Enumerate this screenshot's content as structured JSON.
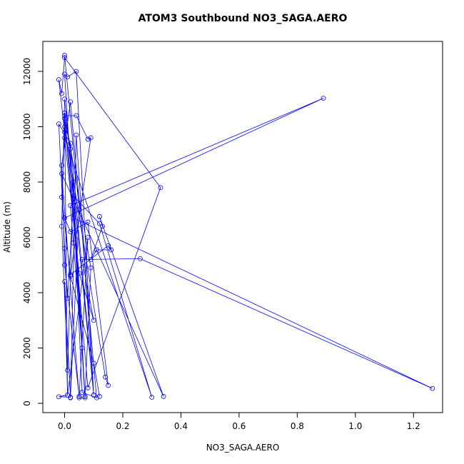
{
  "chart_data": {
    "type": "scatter-line",
    "title": "ATOM3 Southbound NO3_SAGA.AERO",
    "x_label": "NO3_SAGA.AERO",
    "y_label": "Altitude (m)",
    "color": "#0000ff",
    "x": [
      0.12,
      0.1,
      0.02,
      -0.01,
      0.0,
      -0.02,
      -0.01,
      0.0,
      0.33,
      0.08,
      0.0,
      0.02,
      0.06,
      0.03,
      0.02,
      0.89,
      0.0,
      0.02,
      0.08,
      0.15,
      0.14,
      0.0,
      0.03,
      0.12,
      0.3,
      0.0,
      0.05,
      0.1,
      0.06,
      0.26,
      1.265,
      0.03,
      0.0,
      0.04,
      0.08,
      0.09,
      0.02,
      0.15,
      0.16,
      0.11,
      0.09,
      0.13,
      0.12,
      0.34,
      -0.01,
      0.05,
      0.07,
      0.0,
      0.01,
      0.04,
      0.1,
      0.02,
      -0.02,
      0.0,
      0.01,
      0.03,
      0.06,
      0.11,
      0.02,
      -0.01,
      0.0,
      0.05,
      0.08,
      0.01,
      0.0,
      0.02,
      0.04,
      0.1,
      0.0,
      -0.01,
      0.01,
      0.03,
      0.07,
      0.09,
      0.0,
      0.01,
      -0.02,
      0.02,
      0.05,
      0.0
    ],
    "values": [
      250,
      1450,
      4600,
      7450,
      9800,
      11700,
      11200,
      12500,
      7800,
      560,
      10300,
      9200,
      2000,
      5800,
      7150,
      11030,
      6700,
      6200,
      6550,
      650,
      950,
      10000,
      7500,
      6500,
      220,
      9600,
      4700,
      3000,
      5200,
      5230,
      540,
      6700,
      10400,
      10400,
      9550,
      9600,
      4650,
      5700,
      5550,
      5550,
      5200,
      6400,
      6750,
      250,
      8300,
      200,
      200,
      11900,
      11800,
      12000,
      300,
      9400,
      10100,
      5600,
      3800,
      7400,
      400,
      200,
      10900,
      8600,
      5000,
      250,
      6000,
      300,
      4400,
      200,
      9700,
      300,
      11000,
      6400,
      1200,
      8000,
      250,
      4900,
      10500,
      300,
      240,
      220,
      7000,
      12580
    ],
    "xlim": [
      -0.075,
      1.3
    ],
    "ylim": [
      -335,
      13084
    ],
    "xticks": [
      {
        "value": 0,
        "label": "0.0"
      },
      0.2,
      0.4,
      0.6,
      0.8,
      {
        "value": 1,
        "label": "1.0"
      },
      1.2
    ],
    "yticks": [
      0,
      2000,
      4000,
      6000,
      8000,
      10000,
      12000
    ]
  }
}
